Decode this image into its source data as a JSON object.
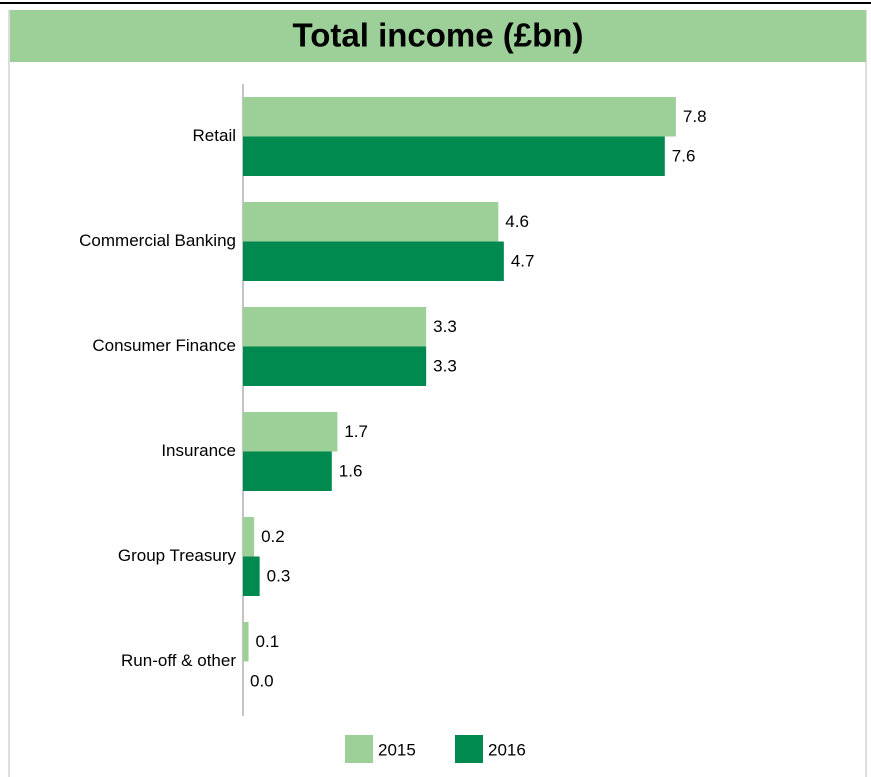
{
  "chart_data": {
    "type": "hbar",
    "title": "Total income (£bn)",
    "categories": [
      "Retail",
      "Commercial Banking",
      "Consumer Finance",
      "Insurance",
      "Group Treasury",
      "Run-off & other"
    ],
    "series": [
      {
        "name": "2015",
        "color": "#9dcf98",
        "values": [
          7.8,
          4.6,
          3.3,
          1.7,
          0.2,
          0.1
        ],
        "value_labels": [
          "7.8",
          "4.6",
          "3.3",
          "1.7",
          "0.2",
          "0.1"
        ]
      },
      {
        "name": "2016",
        "color": "#008a50",
        "values": [
          7.6,
          4.7,
          3.3,
          1.6,
          0.3,
          0
        ],
        "value_labels": [
          "7.6",
          "4.7",
          "3.3",
          "1.6",
          "0.3",
          "0.0"
        ]
      }
    ],
    "xlim": [
      0,
      10
    ]
  }
}
